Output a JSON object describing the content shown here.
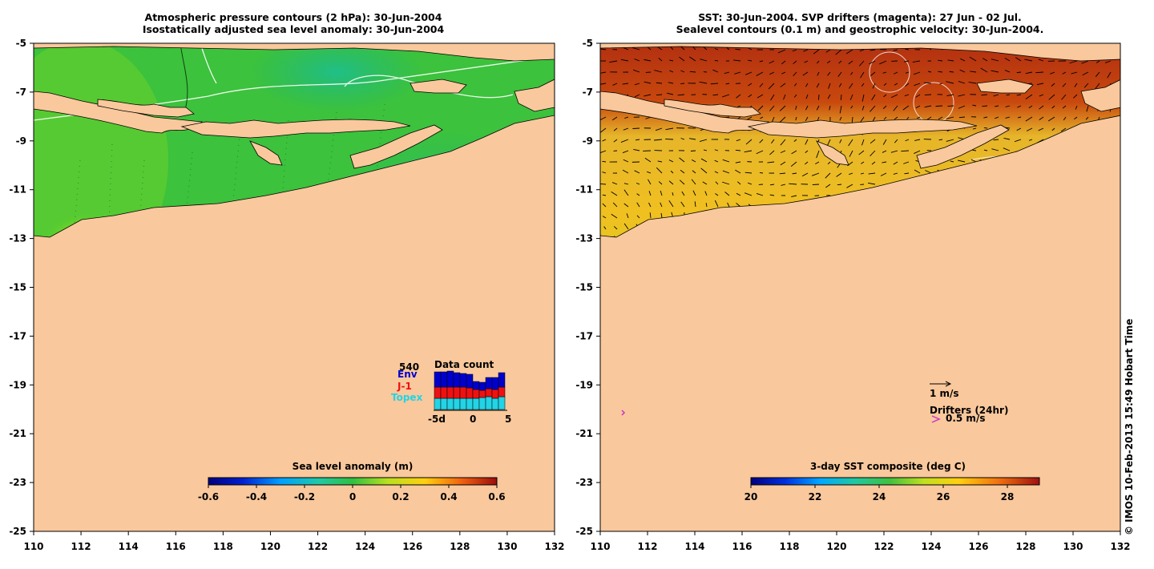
{
  "left_panel": {
    "title_line1": "Atmospheric pressure contours (2 hPa): 30-Jun-2004",
    "title_line2": "Isostatically adjusted sea level anomaly: 30-Jun-2004",
    "colorbar": {
      "label": "Sea level anomaly (m)",
      "ticks": [
        "-0.6",
        "-0.4",
        "-0.2",
        "0",
        "0.2",
        "0.4",
        "0.6"
      ],
      "range": [
        -0.6,
        0.6
      ]
    },
    "inset": {
      "title": "Data count",
      "max_label": "540",
      "legend": [
        {
          "name": "Env",
          "color": "#0000cc"
        },
        {
          "name": "J-1",
          "color": "#ee1111"
        },
        {
          "name": "Topex",
          "color": "#22d4e6"
        }
      ],
      "x_ticks": [
        "-5d",
        "0",
        "5"
      ]
    }
  },
  "right_panel": {
    "title_line1": "SST: 30-Jun-2004. SVP drifters (magenta): 27 Jun - 02 Jul.",
    "title_line2": "Sealevel contours (0.1 m) and geostrophic velocity: 30-Jun-2004.",
    "colorbar": {
      "label": "3-day SST composite (deg C)",
      "ticks": [
        "20",
        "22",
        "24",
        "26",
        "28"
      ],
      "range": [
        20,
        29
      ]
    },
    "velocity_scale_label": "1 m/s",
    "drifters_label": "Drifters (24hr)",
    "drifters_scale_label": "0.5 m/s",
    "drifter_color": "#cc33cc"
  },
  "axes": {
    "lat_ticks": [
      "-5",
      "-7",
      "-9",
      "-11",
      "-13",
      "-15",
      "-17",
      "-19",
      "-21",
      "-23",
      "-25"
    ],
    "lon_ticks": [
      "110",
      "112",
      "114",
      "116",
      "118",
      "120",
      "122",
      "124",
      "126",
      "128",
      "130",
      "132"
    ]
  },
  "colors": {
    "land": "#f9c89c",
    "sla_ocean": "#2bb84a",
    "sst_ocean": "#e8c020"
  },
  "credit": "© IMOS 10-Feb-2013 15:49 Hobart Time"
}
